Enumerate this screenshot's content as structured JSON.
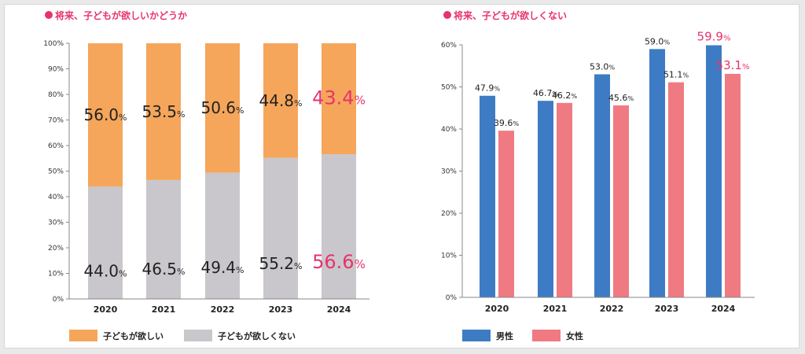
{
  "colors": {
    "accent": "#e8336a",
    "want": "#f5a65b",
    "not_want": "#c9c7cb",
    "male": "#3d7cc4",
    "female": "#f07a82",
    "text": "#222222",
    "axis": "#888888"
  },
  "chart_data": [
    {
      "type": "bar",
      "stacked": true,
      "title": "将来、子どもが欲しいかどうか",
      "categories": [
        "2020",
        "2021",
        "2022",
        "2023",
        "2024"
      ],
      "ylim": [
        0,
        100
      ],
      "yticks": [
        "0%",
        "10%",
        "20%",
        "30%",
        "40%",
        "50%",
        "60%",
        "70%",
        "80%",
        "90%",
        "100%"
      ],
      "series": [
        {
          "name": "子どもが欲しくない",
          "values": [
            44.0,
            46.5,
            49.4,
            55.2,
            56.6
          ],
          "labels": [
            "44.0",
            "46.5",
            "49.4",
            "55.2",
            "56.6"
          ]
        },
        {
          "name": "子どもが欲しい",
          "values": [
            56.0,
            53.5,
            50.6,
            44.8,
            43.4
          ],
          "labels": [
            "56.0",
            "53.5",
            "50.6",
            "44.8",
            "43.4"
          ]
        }
      ],
      "unit": "%",
      "highlight_category": "2024",
      "legend_position": "bottom-left",
      "grid": false
    },
    {
      "type": "bar",
      "title": "将来、子どもが欲しくない",
      "categories": [
        "2020",
        "2021",
        "2022",
        "2023",
        "2024"
      ],
      "ylim": [
        0,
        60
      ],
      "yticks": [
        "0%",
        "10%",
        "20%",
        "30%",
        "40%",
        "50%",
        "60%"
      ],
      "series": [
        {
          "name": "男性",
          "values": [
            47.9,
            46.7,
            53.0,
            59.0,
            59.9
          ],
          "labels": [
            "47.9",
            "46.7",
            "53.0",
            "59.0",
            "59.9"
          ]
        },
        {
          "name": "女性",
          "values": [
            39.6,
            46.2,
            45.6,
            51.1,
            53.1
          ],
          "labels": [
            "39.6",
            "46.2",
            "45.6",
            "51.1",
            "53.1"
          ]
        }
      ],
      "unit": "%",
      "highlight_category": "2024",
      "legend_position": "bottom-left",
      "grid": false
    }
  ]
}
